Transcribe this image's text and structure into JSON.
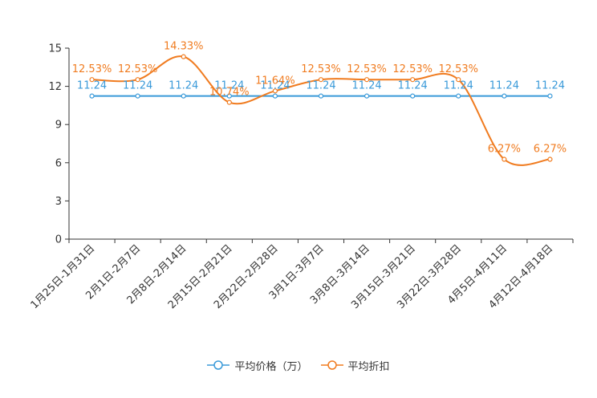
{
  "chart_data": {
    "type": "line",
    "title": "",
    "xlabel": "",
    "ylabel": "",
    "ylim": [
      0,
      15
    ],
    "yticks": [
      0,
      3,
      6,
      9,
      12,
      15
    ],
    "grid": false,
    "legend_position": "bottom",
    "categories": [
      "1月25日-1月31日",
      "2月1日-2月7日",
      "2月8日-2月14日",
      "2月15日-2月21日",
      "2月22日-2月28日",
      "3月1日-3月7日",
      "3月8日-3月14日",
      "3月15日-3月21日",
      "3月22日-3月28日",
      "4月5日-4月11日",
      "4月12日-4月18日"
    ],
    "series": [
      {
        "name": "平均价格（万）",
        "color": "#3a9ad9",
        "smooth": false,
        "values": [
          11.24,
          11.24,
          11.24,
          11.24,
          11.24,
          11.24,
          11.24,
          11.24,
          11.24,
          11.24,
          11.24
        ],
        "labels": [
          "11.24",
          "11.24",
          "11.24",
          "11.24",
          "11.24",
          "11.24",
          "11.24",
          "11.24",
          "11.24",
          "11.24",
          "11.24"
        ]
      },
      {
        "name": "平均折扣",
        "color": "#f07b1f",
        "smooth": true,
        "values": [
          12.53,
          12.53,
          14.33,
          10.74,
          11.64,
          12.53,
          12.53,
          12.53,
          12.53,
          6.27,
          6.27
        ],
        "labels": [
          "12.53%",
          "12.53%",
          "14.33%",
          "10.74%",
          "11.64%",
          "12.53%",
          "12.53%",
          "12.53%",
          "12.53%",
          "6.27%",
          "6.27%"
        ]
      }
    ]
  }
}
